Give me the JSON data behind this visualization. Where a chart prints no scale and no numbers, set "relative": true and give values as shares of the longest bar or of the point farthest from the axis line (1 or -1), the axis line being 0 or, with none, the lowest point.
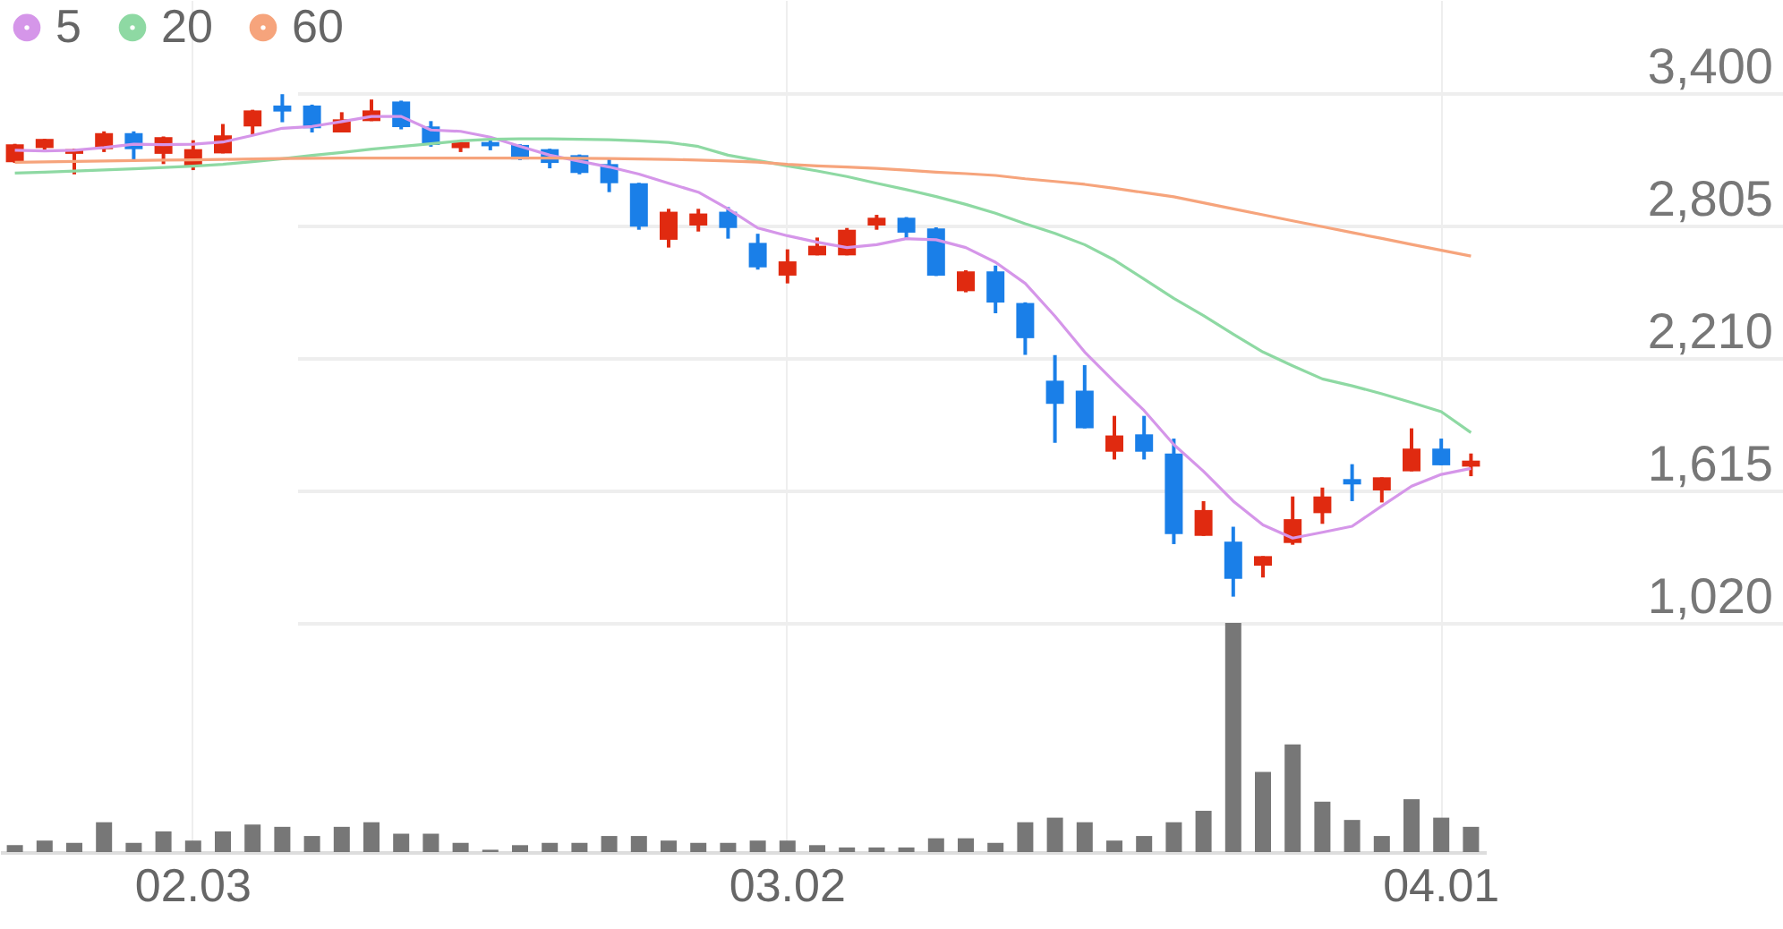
{
  "chart_data": [
    {
      "type": "candlestick",
      "categories": [
        null,
        null,
        null,
        null,
        null,
        null,
        "02.03",
        null,
        null,
        null,
        null,
        null,
        null,
        null,
        null,
        null,
        null,
        null,
        null,
        null,
        null,
        null,
        null,
        null,
        null,
        null,
        "03.02",
        null,
        null,
        null,
        null,
        null,
        null,
        null,
        null,
        null,
        null,
        null,
        null,
        null,
        null,
        null,
        null,
        null,
        null,
        null,
        null,
        null,
        "04.01",
        null
      ],
      "ohlc": [
        [
          3089,
          3172,
          3086,
          3170
        ],
        [
          3153,
          3194,
          3135,
          3194
        ],
        [
          3127,
          3150,
          3035,
          3148
        ],
        [
          3148,
          3228,
          3135,
          3220
        ],
        [
          3220,
          3228,
          3102,
          3148
        ],
        [
          3127,
          3205,
          3081,
          3202
        ],
        [
          3073,
          3188,
          3054,
          3148
        ],
        [
          3129,
          3261,
          3129,
          3210
        ],
        [
          3250,
          3325,
          3215,
          3322
        ],
        [
          3344,
          3395,
          3269,
          3317
        ],
        [
          3344,
          3348,
          3223,
          3242
        ],
        [
          3223,
          3314,
          3223,
          3282
        ],
        [
          3274,
          3371,
          3274,
          3322
        ],
        [
          3362,
          3366,
          3237,
          3247
        ],
        [
          3250,
          3274,
          3159,
          3167
        ],
        [
          3153,
          3188,
          3135,
          3180
        ],
        [
          3180,
          3194,
          3143,
          3161
        ],
        [
          3167,
          3170,
          3099,
          3102
        ],
        [
          3148,
          3150,
          3062,
          3086
        ],
        [
          3121,
          3124,
          3035,
          3041
        ],
        [
          3081,
          3103,
          2955,
          2995
        ],
        [
          2995,
          2997,
          2786,
          2800
        ],
        [
          2741,
          2880,
          2706,
          2867
        ],
        [
          2805,
          2880,
          2778,
          2859
        ],
        [
          2867,
          2888,
          2746,
          2794
        ],
        [
          2727,
          2768,
          2607,
          2617
        ],
        [
          2580,
          2698,
          2545,
          2644
        ],
        [
          2671,
          2751,
          2671,
          2714
        ],
        [
          2671,
          2794,
          2671,
          2786
        ],
        [
          2805,
          2853,
          2786,
          2840
        ],
        [
          2840,
          2843,
          2746,
          2773
        ],
        [
          2792,
          2797,
          2578,
          2580
        ],
        [
          2510,
          2604,
          2505,
          2599
        ],
        [
          2599,
          2625,
          2411,
          2459
        ],
        [
          2457,
          2460,
          2224,
          2299
        ],
        [
          2108,
          2223,
          1829,
          2004
        ],
        [
          2063,
          2178,
          1894,
          1894
        ],
        [
          1789,
          1950,
          1754,
          1862
        ],
        [
          1867,
          1950,
          1754,
          1789
        ],
        [
          1781,
          1848,
          1374,
          1419
        ],
        [
          1411,
          1567,
          1411,
          1527
        ],
        [
          1385,
          1452,
          1138,
          1218
        ],
        [
          1277,
          1320,
          1224,
          1320
        ],
        [
          1379,
          1588,
          1371,
          1486
        ],
        [
          1513,
          1628,
          1465,
          1588
        ],
        [
          1666,
          1733,
          1567,
          1642
        ],
        [
          1615,
          1674,
          1561,
          1674
        ],
        [
          1701,
          1894,
          1701,
          1803
        ],
        [
          1803,
          1848,
          1728,
          1728
        ],
        [
          1722,
          1781,
          1679,
          1749
        ]
      ],
      "colors": [
        "#e02a10",
        "#e02a10",
        "#e02a10",
        "#e02a10",
        "#1a7fe8",
        "#e02a10",
        "#e02a10",
        "#e02a10",
        "#e02a10",
        "#1a7fe8",
        "#1a7fe8",
        "#e02a10",
        "#e02a10",
        "#1a7fe8",
        "#1a7fe8",
        "#e02a10",
        "#1a7fe8",
        "#1a7fe8",
        "#1a7fe8",
        "#1a7fe8",
        "#1a7fe8",
        "#1a7fe8",
        "#e02a10",
        "#e02a10",
        "#1a7fe8",
        "#1a7fe8",
        "#e02a10",
        "#e02a10",
        "#e02a10",
        "#e02a10",
        "#1a7fe8",
        "#1a7fe8",
        "#e02a10",
        "#1a7fe8",
        "#1a7fe8",
        "#1a7fe8",
        "#1a7fe8",
        "#e02a10",
        "#1a7fe8",
        "#1a7fe8",
        "#e02a10",
        "#1a7fe8",
        "#e02a10",
        "#e02a10",
        "#e02a10",
        "#1a7fe8",
        "#e02a10",
        "#e02a10",
        "#1a7fe8",
        "#e02a10"
      ],
      "series": [
        {
          "name": "5",
          "type": "line",
          "color": "#d596e9",
          "values": [
            3143,
            3140,
            3143,
            3155,
            3170,
            3168,
            3170,
            3180,
            3210,
            3242,
            3250,
            3272,
            3295,
            3295,
            3234,
            3228,
            3202,
            3161,
            3121,
            3094,
            3068,
            3036,
            2995,
            2955,
            2880,
            2794,
            2759,
            2730,
            2706,
            2719,
            2746,
            2741,
            2706,
            2640,
            2545,
            2398,
            2237,
            2103,
            1974,
            1821,
            1701,
            1567,
            1460,
            1401,
            1427,
            1454,
            1545,
            1634,
            1687,
            1714
          ]
        },
        {
          "name": "20",
          "type": "line",
          "color": "#8ed9a3",
          "values": [
            3041,
            3045,
            3050,
            3055,
            3060,
            3066,
            3072,
            3080,
            3092,
            3105,
            3120,
            3133,
            3148,
            3160,
            3172,
            3185,
            3192,
            3194,
            3194,
            3192,
            3190,
            3185,
            3178,
            3160,
            3121,
            3097,
            3073,
            3050,
            3025,
            2995,
            2966,
            2935,
            2900,
            2860,
            2813,
            2770,
            2719,
            2650,
            2564,
            2478,
            2400,
            2317,
            2237,
            2175,
            2116,
            2085,
            2049,
            2010,
            1969,
            1875
          ]
        },
        {
          "name": "60",
          "type": "line",
          "color": "#f6a47c",
          "values": [
            3089,
            3091,
            3093,
            3095,
            3097,
            3099,
            3100,
            3102,
            3104,
            3106,
            3107,
            3108,
            3108,
            3108,
            3108,
            3108,
            3108,
            3108,
            3108,
            3107,
            3106,
            3104,
            3102,
            3099,
            3095,
            3090,
            3080,
            3073,
            3068,
            3062,
            3054,
            3045,
            3038,
            3030,
            3015,
            3003,
            2990,
            2972,
            2953,
            2934,
            2907,
            2880,
            2853,
            2826,
            2800,
            2773,
            2747,
            2720,
            2694,
            2668
          ]
        }
      ],
      "ylim": [
        1020,
        3818
      ],
      "yticks": [
        {
          "value": 1020,
          "label": "1,020"
        },
        {
          "value": 1615,
          "label": "1,615"
        },
        {
          "value": 2210,
          "label": "2,210"
        },
        {
          "value": 2805,
          "label": "2,805"
        },
        {
          "value": 3400,
          "label": "3,400"
        }
      ],
      "grid": true,
      "legend": "top left",
      "tick_labels": "y"
    },
    {
      "type": "bar",
      "relative": true,
      "color": "#777777",
      "categories": [
        null,
        null,
        null,
        null,
        null,
        null,
        "02.03",
        null,
        null,
        null,
        null,
        null,
        null,
        null,
        null,
        null,
        null,
        null,
        null,
        null,
        null,
        null,
        null,
        null,
        null,
        null,
        "03.02",
        null,
        null,
        null,
        null,
        null,
        null,
        null,
        null,
        null,
        null,
        null,
        null,
        null,
        null,
        null,
        null,
        null,
        null,
        null,
        null,
        null,
        "04.01",
        null
      ],
      "values": [
        0.03,
        0.05,
        0.04,
        0.13,
        0.04,
        0.09,
        0.05,
        0.09,
        0.12,
        0.11,
        0.07,
        0.11,
        0.13,
        0.08,
        0.08,
        0.04,
        0.01,
        0.03,
        0.04,
        0.04,
        0.07,
        0.07,
        0.05,
        0.04,
        0.04,
        0.05,
        0.05,
        0.03,
        0.02,
        0.02,
        0.02,
        0.06,
        0.06,
        0.04,
        0.13,
        0.15,
        0.13,
        0.05,
        0.07,
        0.13,
        0.18,
        1,
        0.35,
        0.47,
        0.22,
        0.14,
        0.07,
        0.23,
        0.15,
        0.11
      ],
      "grid": "x",
      "tick_labels": "x"
    }
  ]
}
